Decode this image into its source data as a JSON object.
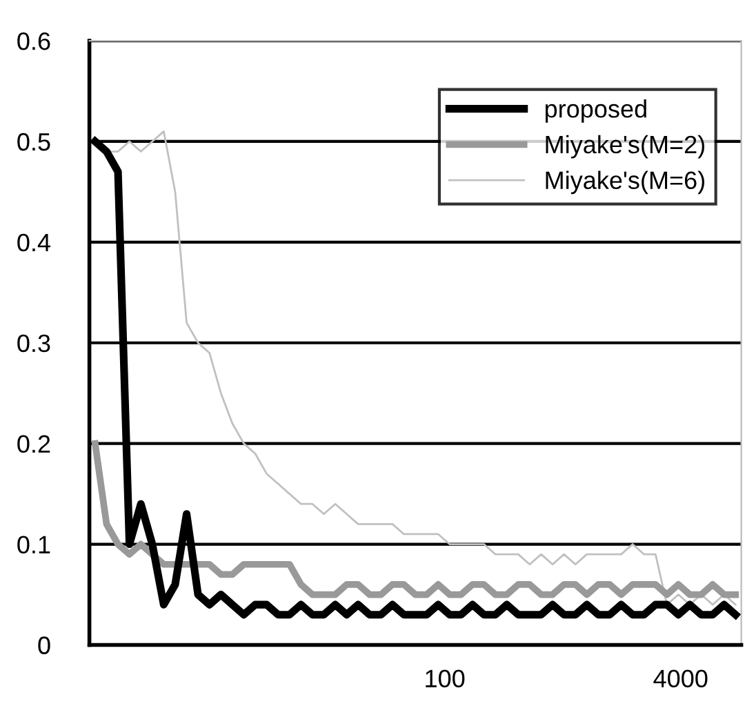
{
  "chart_data": {
    "type": "line",
    "categories": [
      null,
      null,
      null,
      null,
      null,
      null,
      null,
      null,
      null,
      null,
      null,
      null,
      null,
      null,
      null,
      null,
      null,
      null,
      null,
      null,
      null,
      null,
      null,
      null,
      null,
      null,
      null,
      null,
      null,
      null,
      null,
      null,
      null,
      null,
      null,
      null,
      null,
      null,
      null,
      null,
      null,
      null,
      null,
      null,
      null,
      null,
      null,
      null,
      null,
      null,
      null,
      null,
      null,
      null,
      null,
      null,
      null
    ],
    "ylim": [
      0,
      0.6
    ],
    "yticks": [
      0,
      0.1,
      0.2,
      0.3,
      0.4,
      0.5,
      0.6
    ],
    "grid": "y",
    "legend": "top right",
    "tick_labels": "y",
    "annotations": [
      "100",
      "4000"
    ],
    "series": [
      {
        "name": "proposed",
        "color": "#000000",
        "values": [
          0.5,
          0.49,
          0.47,
          0.1,
          0.14,
          0.1,
          0.04,
          0.06,
          0.13,
          0.05,
          0.04,
          0.05,
          0.04,
          0.03,
          0.04,
          0.04,
          0.03,
          0.03,
          0.04,
          0.03,
          0.03,
          0.04,
          0.03,
          0.04,
          0.03,
          0.03,
          0.04,
          0.03,
          0.03,
          0.03,
          0.04,
          0.03,
          0.03,
          0.04,
          0.03,
          0.03,
          0.04,
          0.03,
          0.03,
          0.03,
          0.04,
          0.03,
          0.03,
          0.04,
          0.03,
          0.03,
          0.04,
          0.03,
          0.03,
          0.04,
          0.04,
          0.03,
          0.04,
          0.03,
          0.03,
          0.04,
          0.03
        ]
      },
      {
        "name": "Miyake's(M=2)",
        "color": "#999999",
        "values": [
          0.2,
          0.12,
          0.1,
          0.09,
          0.1,
          0.09,
          0.08,
          0.08,
          0.08,
          0.08,
          0.08,
          0.07,
          0.07,
          0.08,
          0.08,
          0.08,
          0.08,
          0.08,
          0.06,
          0.05,
          0.05,
          0.05,
          0.06,
          0.06,
          0.05,
          0.05,
          0.06,
          0.06,
          0.05,
          0.05,
          0.06,
          0.05,
          0.05,
          0.06,
          0.06,
          0.05,
          0.05,
          0.06,
          0.06,
          0.05,
          0.05,
          0.06,
          0.06,
          0.05,
          0.06,
          0.06,
          0.05,
          0.06,
          0.06,
          0.06,
          0.05,
          0.06,
          0.05,
          0.05,
          0.06,
          0.05,
          0.05
        ]
      },
      {
        "name": "Miyake's(M=6)",
        "color": "#c0c0c0",
        "values": [
          0.5,
          0.49,
          0.49,
          0.5,
          0.49,
          0.5,
          0.51,
          0.45,
          0.32,
          0.3,
          0.29,
          0.25,
          0.22,
          0.2,
          0.19,
          0.17,
          0.16,
          0.15,
          0.14,
          0.14,
          0.13,
          0.14,
          0.13,
          0.12,
          0.12,
          0.12,
          0.12,
          0.11,
          0.11,
          0.11,
          0.11,
          0.1,
          0.1,
          0.1,
          0.1,
          0.09,
          0.09,
          0.09,
          0.08,
          0.09,
          0.08,
          0.09,
          0.08,
          0.09,
          0.09,
          0.09,
          0.09,
          0.1,
          0.09,
          0.09,
          0.04,
          0.05,
          0.04,
          0.05,
          0.04,
          0.05,
          0.04
        ]
      }
    ]
  }
}
